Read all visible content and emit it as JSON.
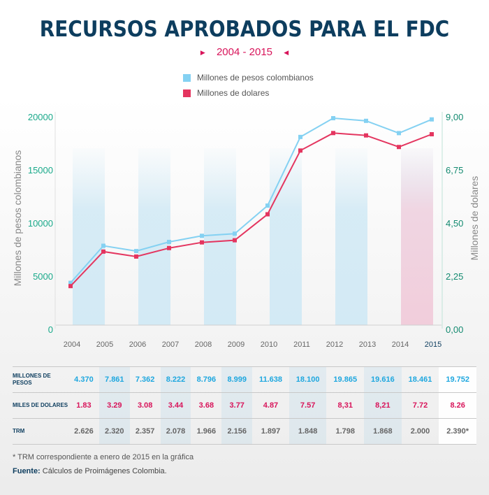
{
  "title": "RECURSOS APROBADOS PARA EL FDC",
  "subtitle": "2004 - 2015",
  "footnote": "* TRM correspondiente a enero de 2015 en la gráfica",
  "source_label": "Fuente:",
  "source_text": "Cálculos de Proimágenes Colombia.",
  "colors": {
    "pesos": "#84d1f2",
    "dolares": "#e4355f",
    "title": "#0d3d5e",
    "left_axis": "#19a98a",
    "right_axis": "#138a70"
  },
  "chart_data": {
    "type": "line",
    "x": [
      "2004",
      "2005",
      "2006",
      "2007",
      "2008",
      "2009",
      "2010",
      "2011",
      "2012",
      "2013",
      "2014",
      "2015"
    ],
    "series": [
      {
        "name": "Millones de pesos colombianos",
        "axis": "left",
        "values": [
          4370,
          7861,
          7362,
          8222,
          8796,
          8999,
          11638,
          18100,
          19865,
          19616,
          18461,
          19752
        ]
      },
      {
        "name": "Millones de dolares",
        "axis": "right",
        "values": [
          1.83,
          3.29,
          3.08,
          3.44,
          3.68,
          3.77,
          4.87,
          7.57,
          8.31,
          8.21,
          7.72,
          8.26
        ]
      }
    ],
    "ylabel_left": "Millones de pesos colombianos",
    "ylabel_right": "Millones de dolares",
    "ylim_left": [
      0,
      20000
    ],
    "ylim_right": [
      0,
      9
    ],
    "yticks_left": [
      "0",
      "5000",
      "10000",
      "15000",
      "20000"
    ],
    "yticks_right": [
      "0,00",
      "2,25",
      "4,50",
      "6,75",
      "9,00"
    ],
    "legend_position": "top-center"
  },
  "table": {
    "rows": [
      {
        "label": "MILLONES DE PESOS",
        "values": [
          "4.370",
          "7.861",
          "7.362",
          "8.222",
          "8.796",
          "8.999",
          "11.638",
          "18.100",
          "19.865",
          "19.616",
          "18.461",
          "19.752"
        ]
      },
      {
        "label": "MILES DE DOLARES",
        "values": [
          "1.83",
          "3.29",
          "3.08",
          "3.44",
          "3.68",
          "3.77",
          "4.87",
          "7.57",
          "8,31",
          "8,21",
          "7.72",
          "8.26"
        ]
      },
      {
        "label": "TRM",
        "values": [
          "2.626",
          "2.320",
          "2.357",
          "2.078",
          "1.966",
          "2.156",
          "1.897",
          "1.848",
          "1.798",
          "1.868",
          "2.000",
          "2.390*"
        ]
      }
    ]
  }
}
